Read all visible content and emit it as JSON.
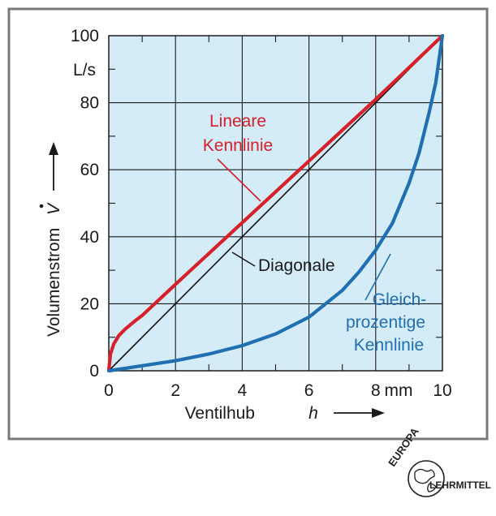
{
  "chart_data": {
    "type": "line",
    "xlim": [
      0,
      10
    ],
    "ylim": [
      0,
      100
    ],
    "x_ticks": [
      "0",
      "2",
      "4",
      "6",
      "8",
      "10"
    ],
    "x_unit": "mm",
    "y_ticks": [
      "0",
      "20",
      "40",
      "60",
      "80",
      "100"
    ],
    "y_unit": "L/s",
    "xlabel": "Ventilhub",
    "xlabel_symbol": "h",
    "ylabel": "Volumenstrom",
    "ylabel_symbol": "V",
    "grid": true,
    "background_color": "#d4ebf8",
    "series": [
      {
        "name": "Lineare Kennlinie",
        "label_lines": [
          "Lineare",
          "Kennlinie"
        ],
        "color": "#d6202a",
        "x": [
          0,
          0.05,
          0.15,
          0.3,
          0.5,
          0.8,
          1,
          2,
          3,
          4,
          5,
          6,
          7,
          8,
          9,
          10
        ],
        "y": [
          0,
          5,
          8,
          10.5,
          12.5,
          15,
          16.5,
          25.8,
          35,
          44.2,
          53.4,
          62.6,
          71.8,
          81,
          90.5,
          100
        ]
      },
      {
        "name": "Diagonale",
        "label_lines": [
          "Diagonale"
        ],
        "color": "#111111",
        "x": [
          0,
          10
        ],
        "y": [
          0,
          100
        ]
      },
      {
        "name": "Gleichprozentige Kennlinie",
        "label_lines": [
          "Gleich-",
          "prozentige",
          "Kennlinie"
        ],
        "color": "#1f6fb2",
        "x": [
          0,
          1,
          2,
          3,
          4,
          5,
          6,
          7,
          7.5,
          8,
          8.5,
          9,
          9.3,
          9.6,
          9.8,
          10
        ],
        "y": [
          0,
          1.5,
          3,
          5,
          7.5,
          11,
          16,
          24,
          29.5,
          36,
          44,
          56,
          65,
          77,
          86,
          100
        ]
      }
    ]
  },
  "publisher": {
    "top_text": "EUROPA",
    "bottom_text": "LEHRMITTEL"
  }
}
